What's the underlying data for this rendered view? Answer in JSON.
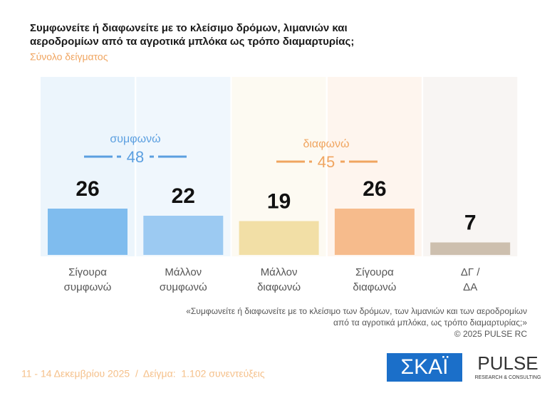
{
  "chart_data": {
    "type": "bar",
    "title": [
      "Συμφωνείτε ή διαφωνείτε με το κλείσιμο δρόμων, λιμανιών και",
      "αεροδρομίων από τα αγροτικά μπλόκα ως τρόπο διαμαρτυρίας;"
    ],
    "subtitle": "Σύνολο δείγματος",
    "categories": [
      [
        "Σίγουρα",
        "συμφωνώ"
      ],
      [
        "Μάλλον",
        "συμφωνώ"
      ],
      [
        "Μάλλον",
        "διαφωνώ"
      ],
      [
        "Σίγουρα",
        "διαφωνώ"
      ],
      [
        "ΔΓ /",
        "ΔΑ"
      ]
    ],
    "values": [
      26,
      22,
      19,
      26,
      7
    ],
    "colors": [
      "#7fbcee",
      "#9ccaf2",
      "#f2dfa6",
      "#f6bb8c",
      "#cdbfae"
    ],
    "groups": [
      {
        "label": "συμφωνώ",
        "value": 48,
        "color": "#5b9fe0"
      },
      {
        "label": "διαφωνώ",
        "value": 45,
        "color": "#f0a560"
      }
    ],
    "note": [
      "«Συμφωνείτε ή διαφωνείτε με το κλείσιμο των δρόμων, των λιμανιών και των αεροδρομίων",
      "από τα αγροτικά μπλόκα, ως τρόπο διαμαρτυρίας;»",
      "©  2025  PULSE RC"
    ],
    "footer": "11 - 14 Δεκεμβρίου 2025  /  Δείγμα:  1.102 συνεντεύξεις",
    "logos": {
      "skai": "ΣΚΑΪ",
      "pulse": "PULSE",
      "pulse_sub": "RESEARCH & CONSULTING"
    }
  }
}
